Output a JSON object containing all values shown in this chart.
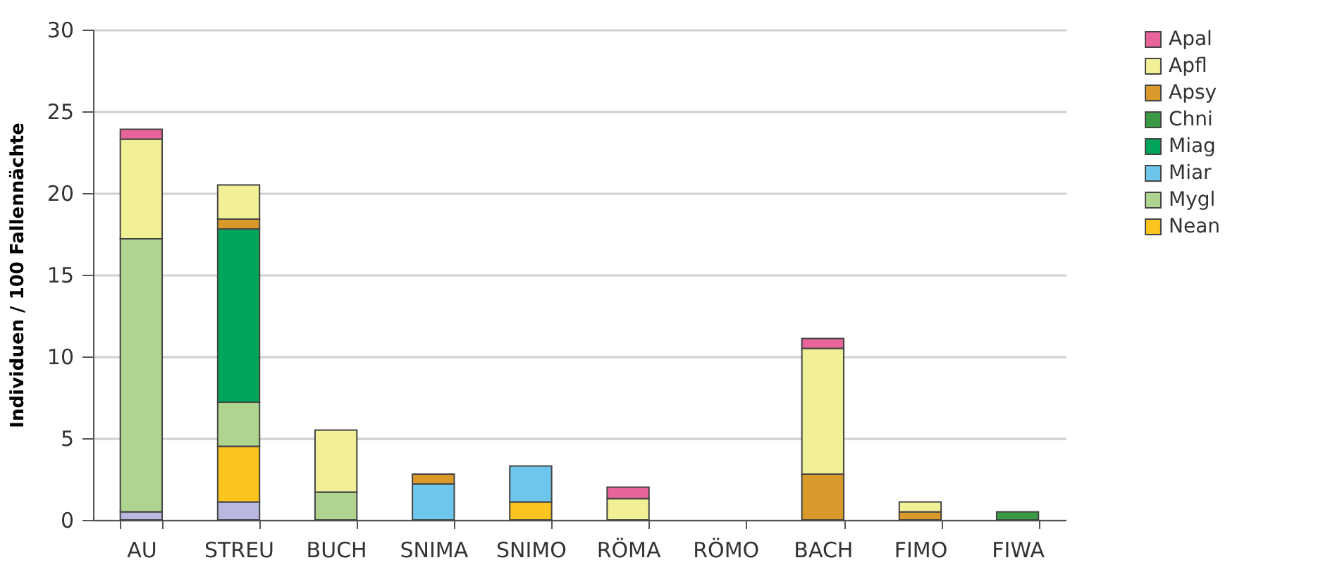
{
  "chart_data": {
    "type": "bar",
    "stacked": true,
    "ylabel": "Individuen / 100 Fallennächte",
    "categories": [
      "AU",
      "STREU",
      "BUCH",
      "SNIMA",
      "SNIMO",
      "RÖMA",
      "RÖMO",
      "BACH",
      "FIMO",
      "FIWA"
    ],
    "series": [
      {
        "color": "#b8b8e0",
        "values": [
          0.5,
          1.1,
          null,
          null,
          null,
          null,
          null,
          null,
          null,
          null
        ]
      },
      {
        "name": "Nean",
        "color": "#fcc41e",
        "values": [
          null,
          3.4,
          null,
          null,
          1.1,
          null,
          null,
          null,
          null,
          null
        ]
      },
      {
        "name": "Mygl",
        "color": "#aed48f",
        "values": [
          16.7,
          2.7,
          1.7,
          null,
          null,
          null,
          null,
          null,
          null,
          null
        ]
      },
      {
        "name": "Miar",
        "color": "#6fc6ec",
        "values": [
          null,
          null,
          null,
          2.2,
          2.2,
          null,
          null,
          null,
          null,
          null
        ]
      },
      {
        "name": "Miag",
        "color": "#00a45a",
        "values": [
          null,
          10.6,
          null,
          null,
          null,
          null,
          null,
          null,
          null,
          null
        ]
      },
      {
        "name": "Chni",
        "color": "#3a9a45",
        "values": [
          null,
          null,
          null,
          null,
          null,
          null,
          null,
          null,
          null,
          0.5
        ]
      },
      {
        "name": "Apsy",
        "color": "#d99a2b",
        "values": [
          null,
          0.6,
          null,
          0.6,
          null,
          null,
          null,
          2.8,
          0.5,
          null
        ]
      },
      {
        "name": "Apfl",
        "color": "#f2f097",
        "values": [
          6.1,
          2.1,
          3.8,
          null,
          null,
          1.3,
          null,
          7.7,
          0.6,
          null
        ]
      },
      {
        "name": "Apal",
        "color": "#e8649a",
        "values": [
          0.6,
          null,
          null,
          null,
          null,
          0.7,
          null,
          0.6,
          null,
          null
        ]
      }
    ],
    "ylim": [
      0,
      30
    ],
    "yticks": [
      0,
      5,
      10,
      15,
      20,
      25,
      30
    ],
    "grid": "y",
    "legend": "top right"
  }
}
